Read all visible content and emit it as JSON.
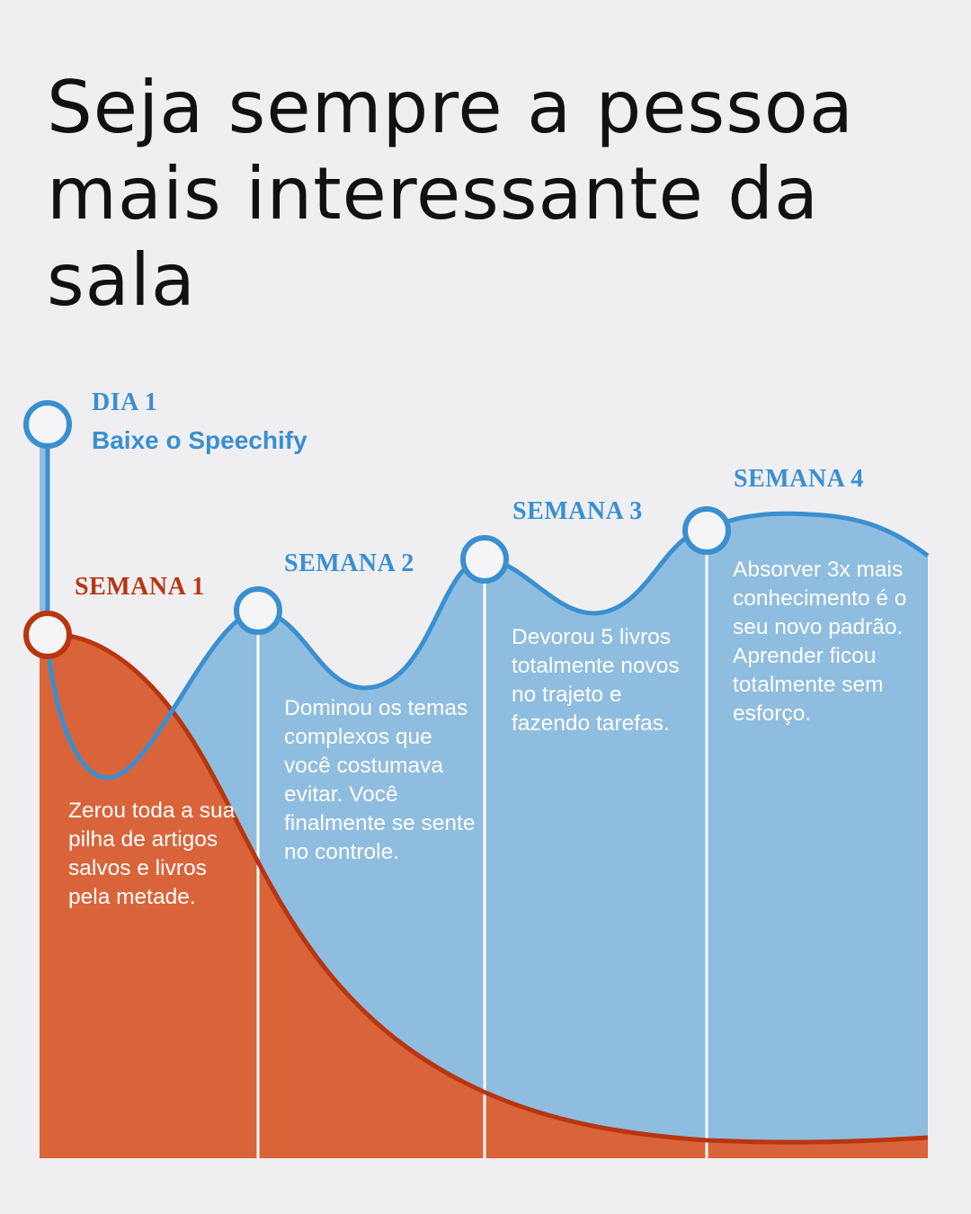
{
  "title": "Seja sempre a pessoa mais interessante da sala",
  "colors": {
    "background": "#efeff2",
    "blue": "#3a8fd0",
    "blue_fill": "#8fbddf",
    "red": "#b8350f",
    "red_fill": "#d9643a"
  },
  "milestones": {
    "dia1": {
      "label": "DIA 1",
      "text": "Baixe o Speechify"
    },
    "semana1": {
      "label": "SEMANA 1",
      "text": "Zerou toda a sua pilha de artigos salvos e livros pela metade."
    },
    "semana2": {
      "label": "SEMANA 2",
      "text": "Dominou os temas complexos que você costumava evitar. Você finalmente se sente no controle."
    },
    "semana3": {
      "label": "SEMANA 3",
      "text": "Devorou 5 livros totalmente novos no trajeto e fazendo tarefas."
    },
    "semana4": {
      "label": "SEMANA 4",
      "text": "Absorver 3x mais conhecimento é o seu novo padrão. Aprender ficou totalmente sem esforço."
    }
  }
}
